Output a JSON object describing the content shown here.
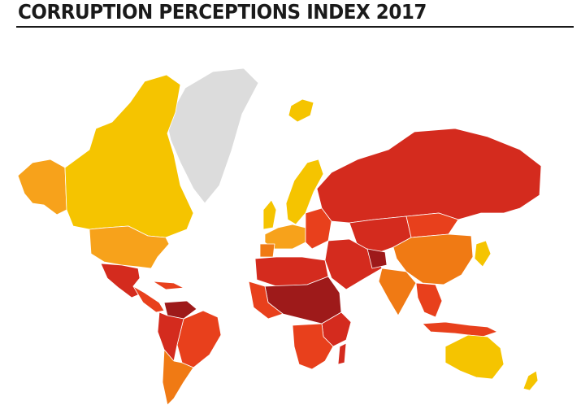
{
  "title": "CORRUPTION PERCEPTIONS INDEX 2017",
  "colors": {
    "very_clean": "#f5c400",
    "clean": "#f7a21b",
    "moderate": "#f07a14",
    "corrupt": "#e8401c",
    "highly_corrupt": "#d42b1e",
    "very_highly_corrupt": "#9e1a1a",
    "no_data": "#dcdcdc"
  }
}
